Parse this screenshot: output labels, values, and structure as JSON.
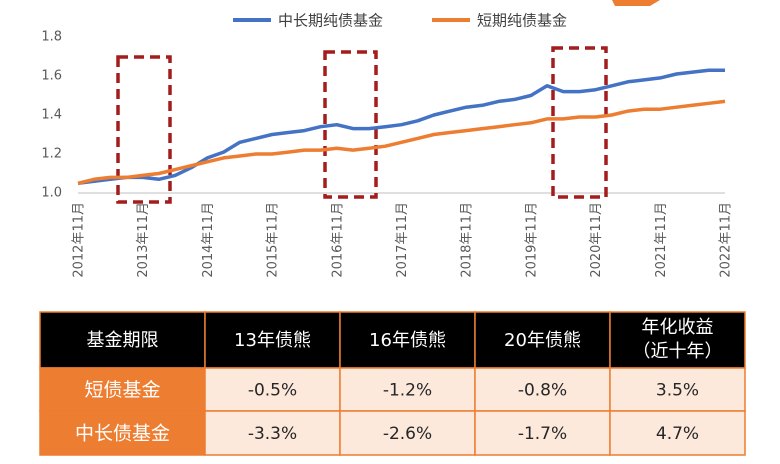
{
  "chart_data": {
    "type": "line",
    "categories": [
      "2012年11月",
      null,
      null,
      null,
      "2013年11月",
      null,
      null,
      null,
      "2014年11月",
      null,
      null,
      null,
      "2015年11月",
      null,
      null,
      null,
      "2016年11月",
      null,
      null,
      null,
      "2017年11月",
      null,
      null,
      null,
      "2018年11月",
      null,
      null,
      null,
      "2019年11月",
      null,
      null,
      null,
      "2020年11月",
      null,
      null,
      null,
      "2021年11月",
      null,
      null,
      null,
      "2022年11月"
    ],
    "series": [
      {
        "name": "中长期纯债基金",
        "color": "#4472c4",
        "values": [
          1.05,
          1.06,
          1.07,
          1.08,
          1.08,
          1.07,
          1.09,
          1.13,
          1.18,
          1.21,
          1.26,
          1.28,
          1.3,
          1.31,
          1.32,
          1.34,
          1.35,
          1.33,
          1.33,
          1.34,
          1.35,
          1.37,
          1.4,
          1.42,
          1.44,
          1.45,
          1.47,
          1.48,
          1.5,
          1.55,
          1.52,
          1.52,
          1.53,
          1.55,
          1.57,
          1.58,
          1.59,
          1.61,
          1.62,
          1.63,
          1.63
        ]
      },
      {
        "name": "短期纯债基金",
        "color": "#ed7d31",
        "values": [
          1.05,
          1.07,
          1.08,
          1.08,
          1.09,
          1.1,
          1.12,
          1.14,
          1.16,
          1.18,
          1.19,
          1.2,
          1.2,
          1.21,
          1.22,
          1.22,
          1.23,
          1.22,
          1.23,
          1.24,
          1.26,
          1.28,
          1.3,
          1.31,
          1.32,
          1.33,
          1.34,
          1.35,
          1.36,
          1.38,
          1.38,
          1.39,
          1.39,
          1.4,
          1.42,
          1.43,
          1.43,
          1.44,
          1.45,
          1.46,
          1.47
        ]
      }
    ],
    "ylim": [
      1.0,
      1.8
    ],
    "yticks": [
      {
        "value": 1.0,
        "label": "1.0"
      },
      1.2,
      1.4,
      1.6,
      1.8
    ],
    "grid": false,
    "legend": "top"
  },
  "table": {
    "header": [
      "基金期限",
      "13年债熊",
      "16年债熊",
      "20年债熊",
      [
        "年化收益",
        "（近十年）"
      ]
    ],
    "rows": [
      [
        "短债基金",
        "-0.5%",
        "-1.2%",
        "-0.8%",
        "3.5%"
      ],
      [
        "中长债基金",
        "-3.3%",
        "-2.6%",
        "-1.7%",
        "4.7%"
      ]
    ]
  }
}
